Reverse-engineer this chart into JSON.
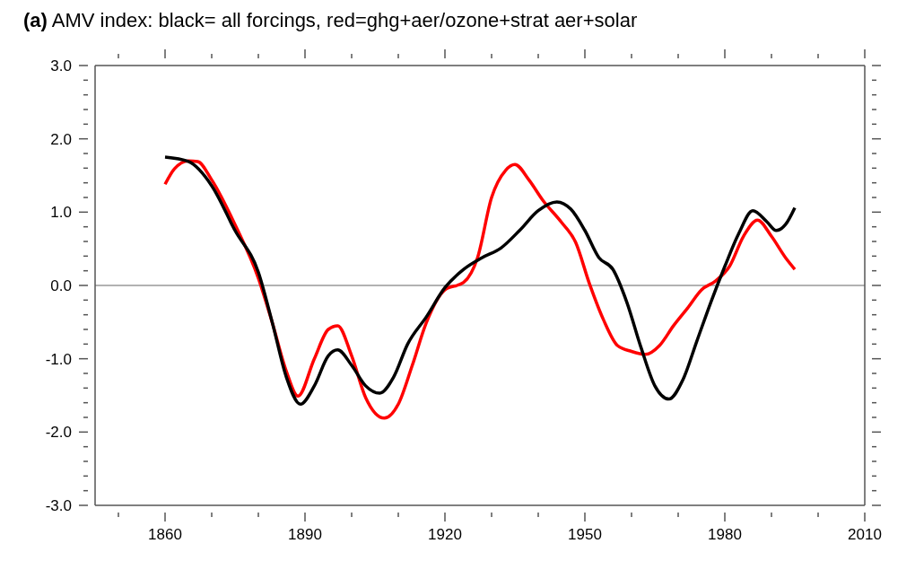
{
  "chart_data": {
    "type": "line",
    "title": "(a) AMV index: black= all forcings, red=ghg+aer/ozone+strat  aer+solar",
    "xlim": [
      1845,
      2010
    ],
    "xticks": [
      {
        "value": 1850,
        "label": null
      },
      1860,
      {
        "value": 1870,
        "label": null
      },
      {
        "value": 1880,
        "label": null
      },
      1890,
      {
        "value": 1900,
        "label": null
      },
      {
        "value": 1910,
        "label": null
      },
      1920,
      {
        "value": 1930,
        "label": null
      },
      {
        "value": 1940,
        "label": null
      },
      1950,
      {
        "value": 1960,
        "label": null
      },
      {
        "value": 1970,
        "label": null
      },
      1980,
      {
        "value": 1990,
        "label": null
      },
      {
        "value": 2000,
        "label": null
      },
      2010
    ],
    "ylim": [
      -3,
      3
    ],
    "yticks": [
      {
        "value": -3,
        "label": "-3.0"
      },
      {
        "value": -2.8,
        "label": null
      },
      {
        "value": -2.6,
        "label": null
      },
      {
        "value": -2.4,
        "label": null
      },
      {
        "value": -2.2,
        "label": null
      },
      {
        "value": -2,
        "label": "-2.0"
      },
      {
        "value": -1.8,
        "label": null
      },
      {
        "value": -1.6,
        "label": null
      },
      {
        "value": -1.4,
        "label": null
      },
      {
        "value": -1.2,
        "label": null
      },
      {
        "value": -1,
        "label": "-1.0"
      },
      {
        "value": -0.8,
        "label": null
      },
      {
        "value": -0.6,
        "label": null
      },
      {
        "value": -0.4,
        "label": null
      },
      {
        "value": -0.2,
        "label": null
      },
      {
        "value": 0,
        "label": "0.0"
      },
      {
        "value": 0.2,
        "label": null
      },
      {
        "value": 0.4,
        "label": null
      },
      {
        "value": 0.6,
        "label": null
      },
      {
        "value": 0.8,
        "label": null
      },
      {
        "value": 1,
        "label": "1.0"
      },
      {
        "value": 1.2,
        "label": null
      },
      {
        "value": 1.4,
        "label": null
      },
      {
        "value": 1.6,
        "label": null
      },
      {
        "value": 1.8,
        "label": null
      },
      {
        "value": 2,
        "label": "2.0"
      },
      {
        "value": 2.2,
        "label": null
      },
      {
        "value": 2.4,
        "label": null
      },
      {
        "value": 2.6,
        "label": null
      },
      {
        "value": 2.8,
        "label": null
      },
      {
        "value": 3,
        "label": "3.0"
      }
    ],
    "grid": false,
    "legend": false,
    "marker": "none",
    "line_style": "solid",
    "ref_lines": [
      {
        "axis": "y",
        "value": 0,
        "color": "#999999"
      }
    ],
    "series": [
      {
        "color": "#ff0000",
        "x": [
          1860,
          1862,
          1865,
          1867,
          1870,
          1875,
          1880,
          1883,
          1886,
          1888.5,
          1892,
          1895,
          1897,
          1900,
          1903,
          1907,
          1910,
          1913,
          1916,
          1920,
          1924,
          1927,
          1930,
          1933,
          1935,
          1938,
          1941,
          1945,
          1948,
          1951,
          1954,
          1957,
          1960,
          1963,
          1966,
          1969,
          1972,
          1975,
          1978,
          1981,
          1984,
          1987,
          1990,
          1993,
          1995
        ],
        "values": [
          1.38,
          1.59,
          1.7,
          1.69,
          1.44,
          0.83,
          0.1,
          -0.51,
          -1.17,
          -1.51,
          -1.0,
          -0.6,
          -0.55,
          -0.96,
          -1.53,
          -1.81,
          -1.62,
          -1.09,
          -0.51,
          -0.06,
          0.04,
          0.38,
          1.2,
          1.57,
          1.65,
          1.44,
          1.16,
          0.86,
          0.59,
          0.02,
          -0.47,
          -0.82,
          -0.9,
          -0.94,
          -0.82,
          -0.55,
          -0.31,
          -0.06,
          0.06,
          0.26,
          0.67,
          0.89,
          0.67,
          0.38,
          0.22
        ]
      },
      {
        "color": "#000000",
        "x": [
          1860,
          1865,
          1870,
          1875,
          1880,
          1883,
          1886,
          1889,
          1892,
          1895,
          1897,
          1900,
          1903,
          1906,
          1909,
          1912,
          1916,
          1920,
          1924,
          1928,
          1932,
          1936,
          1940,
          1944,
          1947,
          1950,
          1953,
          1956,
          1959,
          1962,
          1965,
          1968,
          1971,
          1974,
          1977,
          1980,
          1983,
          1986,
          1989,
          1991,
          1993,
          1995
        ],
        "values": [
          1.75,
          1.69,
          1.36,
          0.75,
          0.18,
          -0.51,
          -1.25,
          -1.62,
          -1.37,
          -0.96,
          -0.88,
          -1.09,
          -1.37,
          -1.47,
          -1.25,
          -0.8,
          -0.43,
          -0.03,
          0.22,
          0.38,
          0.51,
          0.75,
          1.02,
          1.14,
          1.04,
          0.75,
          0.38,
          0.22,
          -0.23,
          -0.84,
          -1.37,
          -1.55,
          -1.29,
          -0.76,
          -0.23,
          0.26,
          0.71,
          1.02,
          0.87,
          0.75,
          0.83,
          1.06
        ]
      }
    ]
  }
}
